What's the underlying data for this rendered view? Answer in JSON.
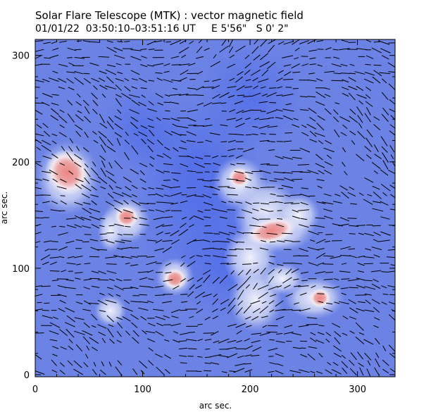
{
  "header": {
    "title": "Solar Flare Telescope (MTK) : vector magnetic field",
    "subtitle": "01/01/22  03:50:10–03:51:16 UT     E 5'56\"   S 0' 2\""
  },
  "axes": {
    "xlabel": "arc sec.",
    "ylabel": "arc sec.",
    "xlim": [
      0,
      335
    ],
    "ylim": [
      -2,
      315
    ],
    "xticks": [
      0,
      100,
      200,
      300
    ],
    "yticks": [
      0,
      100,
      200,
      300
    ]
  },
  "colors": {
    "background_field": "#5b74e4",
    "strong_negative": "#3f5ce8",
    "plage": "#e8e8f4",
    "positive_core": "#e88080",
    "arrow": "#000000"
  },
  "regions": [
    {
      "name": "positive-polarity-core",
      "x": 30,
      "y": 190,
      "strength": 1.0
    },
    {
      "name": "positive-polarity-core",
      "x": 85,
      "y": 148,
      "strength": 0.8
    },
    {
      "name": "positive-polarity-core",
      "x": 130,
      "y": 90,
      "strength": 0.7
    },
    {
      "name": "positive-polarity-core",
      "x": 190,
      "y": 185,
      "strength": 0.6
    },
    {
      "name": "positive-polarity-core",
      "x": 220,
      "y": 135,
      "strength": 1.0
    },
    {
      "name": "positive-polarity-core",
      "x": 265,
      "y": 72,
      "strength": 0.5
    }
  ]
}
